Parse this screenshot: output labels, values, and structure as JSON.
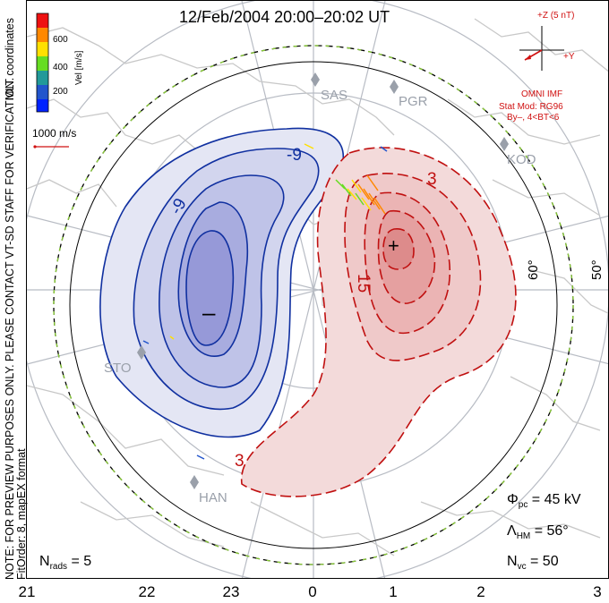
{
  "title": "12/Feb/2004 20:00–20:02 UT",
  "side_note": {
    "line1": "NOTE: FOR PREVIEW PURPOSES ONLY. PLEASE CONTACT VT-SD STAFF FOR VERIFICATION.",
    "line2": "FitOrder: 8, mapEX format",
    "coords": "MLT coordinates"
  },
  "colorbar": {
    "label": "Vel [m/s]",
    "ticks": [
      "600",
      "400",
      "200"
    ],
    "colors": [
      "#ee1111",
      "#ff8800",
      "#ffe000",
      "#66dd22",
      "#229999",
      "#2255cc",
      "#0022ff"
    ]
  },
  "vector_scale": {
    "label": "1000 m/s",
    "color": "#d01010"
  },
  "imf": {
    "top": "+Z (5 nT)",
    "right": "+Y",
    "label1": "OMNI IMF",
    "label2": "Stat Mod: RG96",
    "label3": "By–, 4<BT<6"
  },
  "latitude_labels": [
    "60°",
    "50°"
  ],
  "stations": [
    "SAS",
    "PGR",
    "KOD",
    "STO",
    "HAN"
  ],
  "contour_labels": {
    "negative": [
      "-9",
      "-9"
    ],
    "positive": [
      "3",
      "15",
      "3"
    ]
  },
  "symbols": {
    "min": "–",
    "max": "+"
  },
  "stats": {
    "phi_label": "Φ",
    "phi_sub": "pc",
    "phi_value": "= 45 kV",
    "lambda_label": "Λ",
    "lambda_sub": "HM",
    "lambda_value": "= 56°",
    "nvc_label": "N",
    "nvc_sub": "vc",
    "nvc_value": "= 50",
    "nrads_label": "N",
    "nrads_sub": "rads",
    "nrads_value": "= 5"
  },
  "mlt_ticks": [
    "21",
    "22",
    "23",
    "0",
    "1",
    "2",
    "3"
  ],
  "colors": {
    "positive": "#d01010",
    "negative": "#1030a0",
    "grid": "#b8bcc4",
    "coast": "#c8c8c8",
    "boundary": "#88cc33"
  }
}
